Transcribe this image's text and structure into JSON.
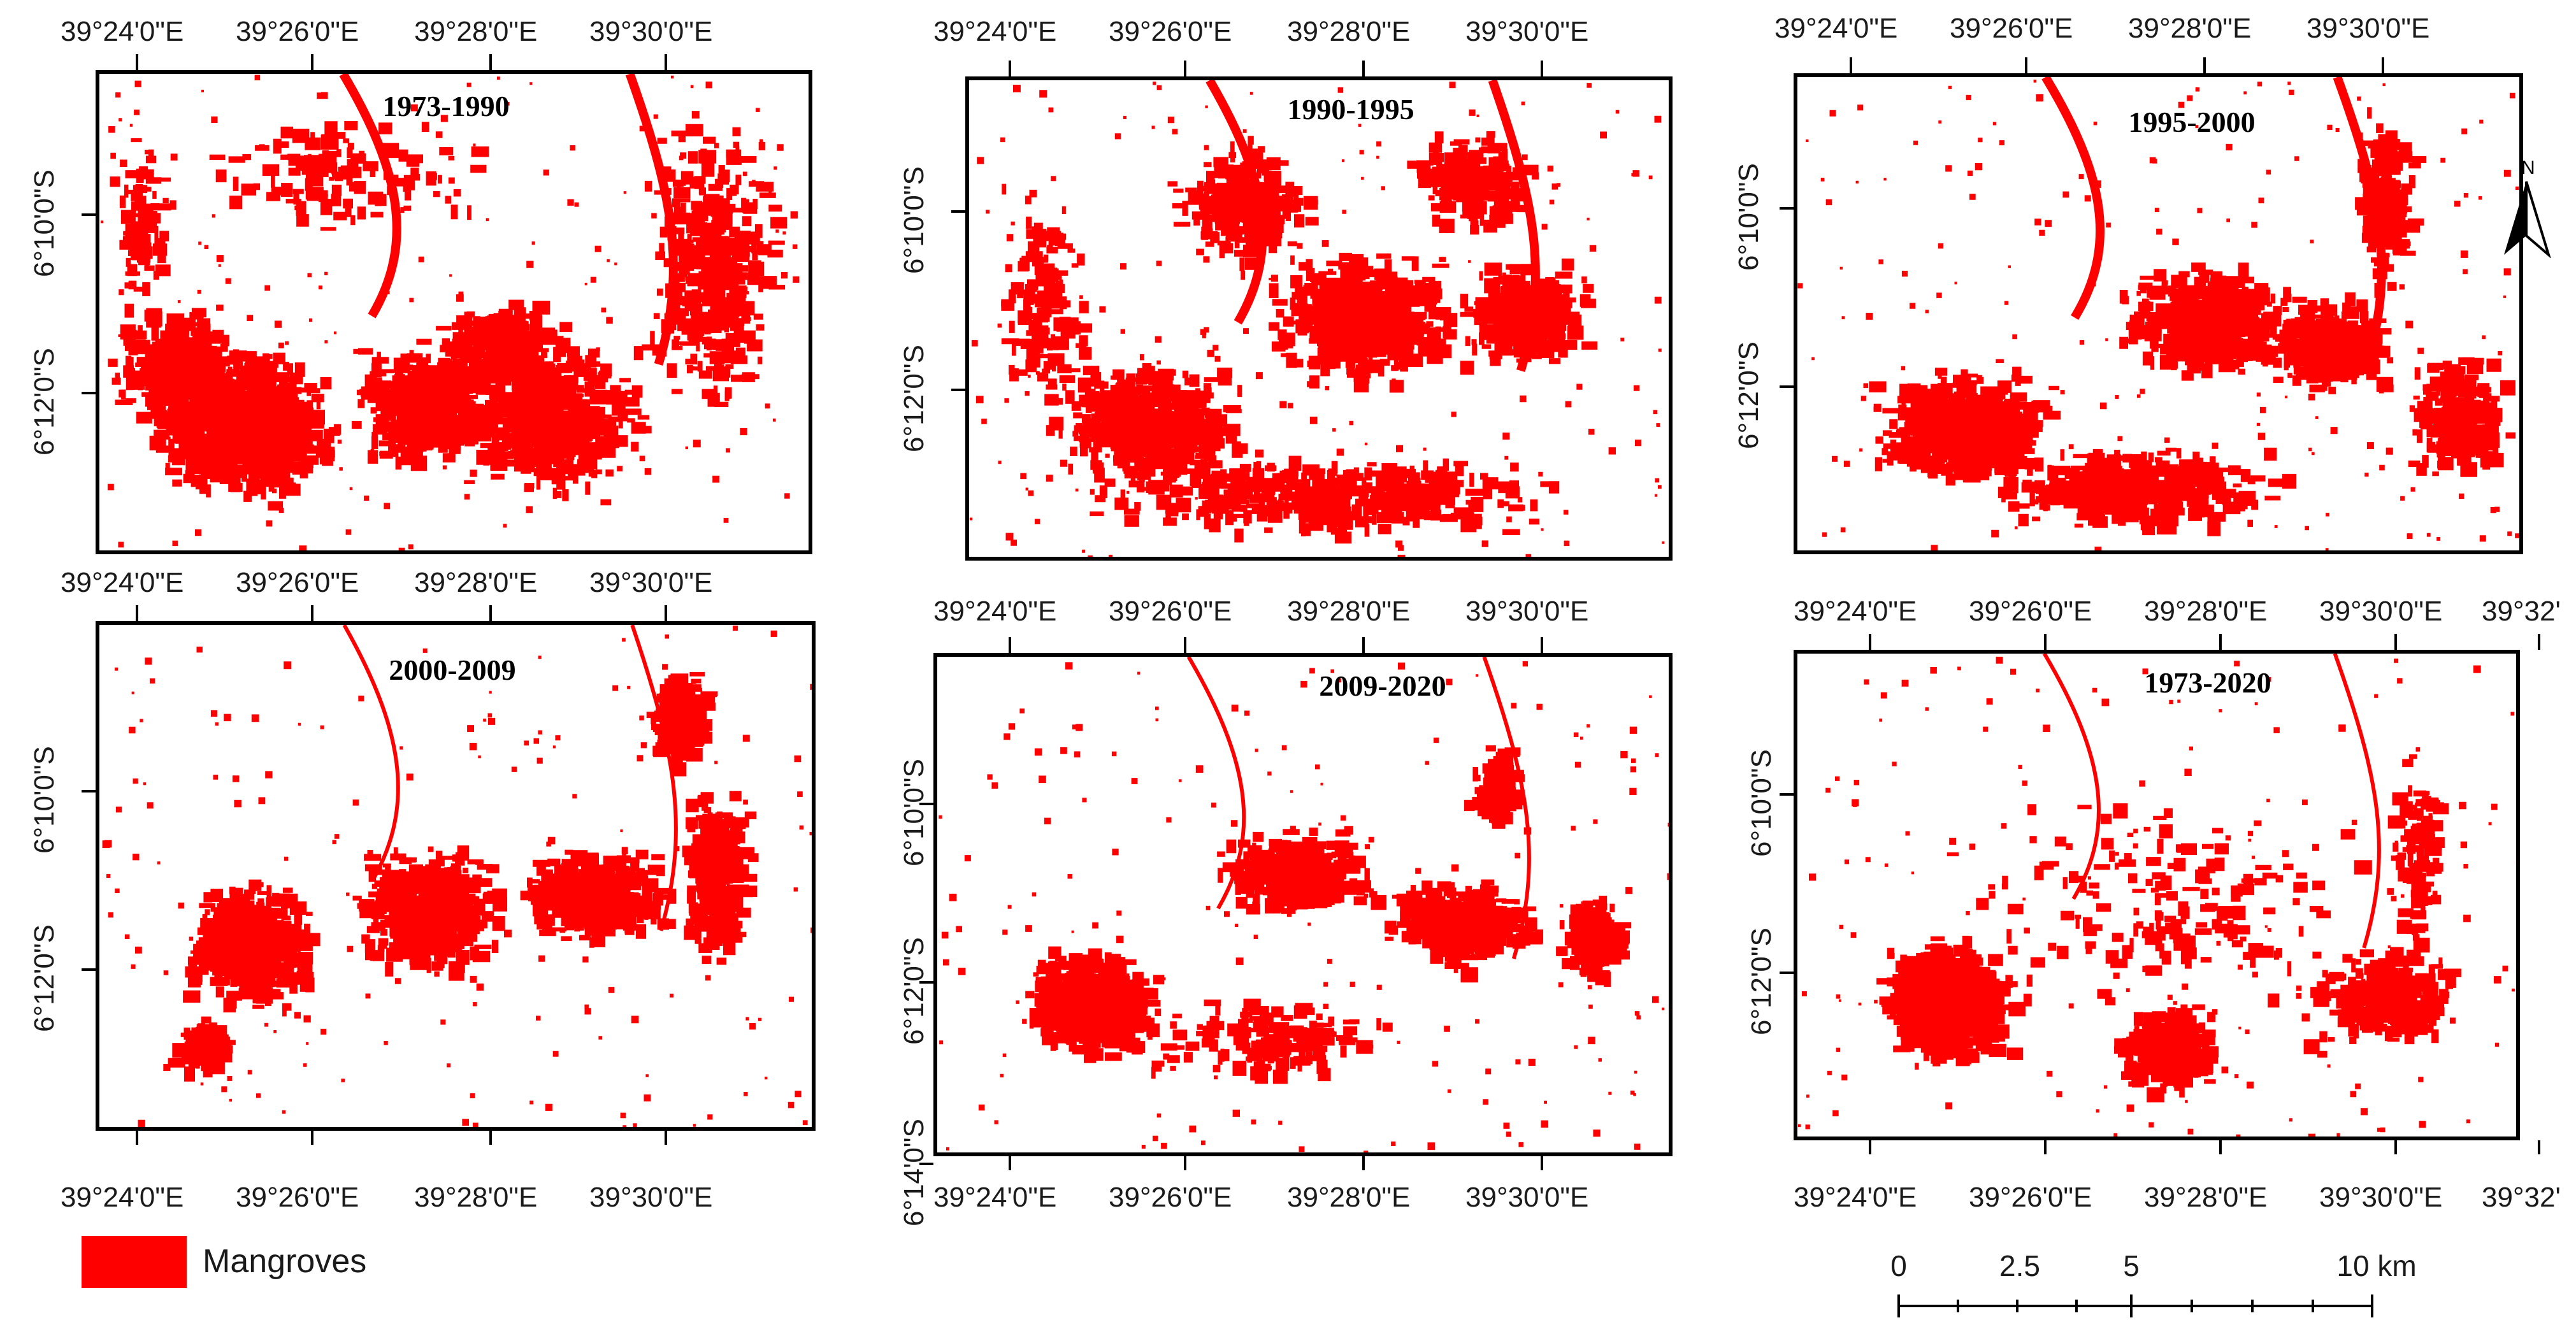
{
  "panels": [
    {
      "title": "1973-1990",
      "top_labels": [
        "39°24'0\"E",
        "39°26'0\"E",
        "39°28'0\"E",
        "39°30'0\"E"
      ],
      "bottom_labels": [],
      "left_labels": [
        "6°10'0\"S",
        "6°12'0\"S"
      ]
    },
    {
      "title": "1990-1995",
      "top_labels": [
        "39°24'0\"E",
        "39°26'0\"E",
        "39°28'0\"E",
        "39°30'0\"E"
      ],
      "bottom_labels": [],
      "left_labels": [
        "6°10'0\"S",
        "6°12'0\"S"
      ]
    },
    {
      "title": "1995-2000",
      "top_labels": [
        "39°24'0\"E",
        "39°26'0\"E",
        "39°28'0\"E",
        "39°30'0\"E"
      ],
      "bottom_labels": [],
      "left_labels": [
        "6°10'0\"S",
        "6°12'0\"S"
      ]
    },
    {
      "title": "2000-2009",
      "top_labels": [
        "39°24'0\"E",
        "39°26'0\"E",
        "39°28'0\"E",
        "39°30'0\"E"
      ],
      "bottom_labels": [
        "39°24'0\"E",
        "39°26'0\"E",
        "39°28'0\"E",
        "39°30'0\"E"
      ],
      "left_labels": [
        "6°10'0\"S",
        "6°12'0\"S"
      ]
    },
    {
      "title": "2009-2020",
      "top_labels": [
        "39°24'0\"E",
        "39°26'0\"E",
        "39°28'0\"E",
        "39°30'0\"E"
      ],
      "bottom_labels": [
        "39°24'0\"E",
        "39°26'0\"E",
        "39°28'0\"E",
        "39°30'0\"E"
      ],
      "left_labels": [
        "6°10'0\"S",
        "6°12'0\"S",
        "6°14'0\"S"
      ]
    },
    {
      "title": "1973-2020",
      "top_labels": [
        "39°24'0\"E",
        "39°26'0\"E",
        "39°28'0\"E",
        "39°30'0\"E",
        "39°32'"
      ],
      "bottom_labels": [
        "39°24'0\"E",
        "39°26'0\"E",
        "39°28'0\"E",
        "39°30'0\"E",
        "39°32'"
      ],
      "left_labels": [
        "6°10'0\"S",
        "6°12'0\"S"
      ]
    }
  ],
  "legend": {
    "label": "Mangroves",
    "color": "#ff0000"
  },
  "scalebar": {
    "labels": [
      "0",
      "2.5",
      "5",
      "10 km"
    ]
  },
  "north_arrow": {
    "label": "N",
    "icon": "north-arrow-icon"
  },
  "colors": {
    "mangrove": "#ff0000",
    "frame": "#000000",
    "background": "#ffffff"
  }
}
